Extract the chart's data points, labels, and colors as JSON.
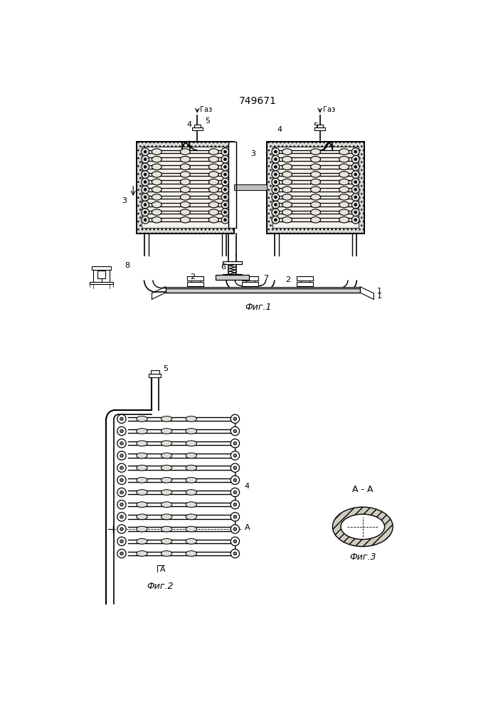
{
  "title": "749671",
  "title_fontsize": 10,
  "fig1_label": "Фиг.1",
  "fig2_label": "Фиг.2",
  "fig3_label": "Фиг.3",
  "aa_label": "A - A",
  "bg_color": "#ffffff"
}
